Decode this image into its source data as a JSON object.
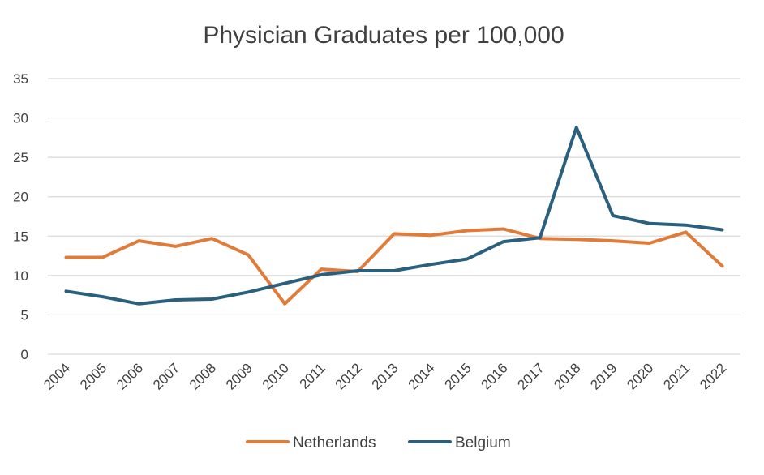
{
  "chart_data": {
    "type": "line",
    "title": "Physician Graduates per 100,000",
    "xlabel": "",
    "ylabel": "",
    "ylim": [
      0,
      35
    ],
    "yticks": [
      "0",
      "5",
      "10",
      "15",
      "20",
      "25",
      "30",
      "35"
    ],
    "grid": true,
    "legend_position": "bottom",
    "categories": [
      "2004",
      "2005",
      "2006",
      "2007",
      "2008",
      "2009",
      "2010",
      "2011",
      "2012",
      "2013",
      "2014",
      "2015",
      "2016",
      "2017",
      "2018",
      "2019",
      "2020",
      "2021",
      "2022"
    ],
    "series": [
      {
        "name": "Netherlands",
        "color": "#E07B39",
        "values": [
          12.3,
          12.3,
          14.4,
          13.7,
          14.7,
          12.6,
          6.4,
          10.8,
          10.5,
          15.3,
          15.1,
          15.7,
          15.9,
          14.7,
          14.6,
          14.4,
          14.1,
          15.5,
          11.2
        ]
      },
      {
        "name": "Belgium",
        "color": "#2A5F7E",
        "values": [
          8.0,
          7.3,
          6.4,
          6.9,
          7.0,
          7.9,
          9.0,
          10.1,
          10.6,
          10.6,
          11.4,
          12.1,
          14.3,
          14.8,
          28.8,
          17.6,
          16.6,
          16.4,
          15.8
        ]
      }
    ]
  }
}
